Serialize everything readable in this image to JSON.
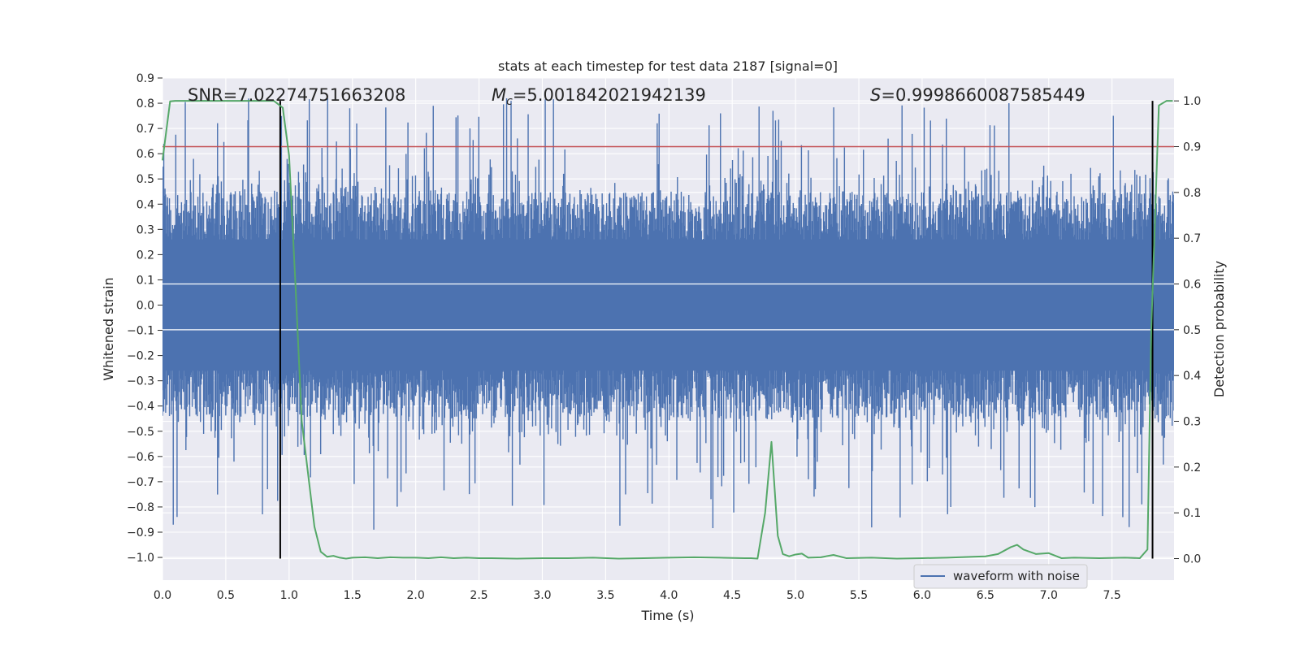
{
  "chart_data": {
    "type": "line",
    "title": "stats at each timestep for test data 2187 [signal=0]",
    "xlabel": "Time (s)",
    "ylabel": "Whitened strain",
    "y2label": "Detection probability",
    "xlim": [
      0,
      7.99
    ],
    "ylim": [
      -1.09,
      0.9
    ],
    "y2lim": [
      -0.047,
      1.05
    ],
    "x_ticks": [
      "0.0",
      "0.5",
      "1.0",
      "1.5",
      "2.0",
      "2.5",
      "3.0",
      "3.5",
      "4.0",
      "4.5",
      "5.0",
      "5.5",
      "6.0",
      "6.5",
      "7.0",
      "7.5"
    ],
    "x_tick_values": [
      0,
      0.5,
      1.0,
      1.5,
      2.0,
      2.5,
      3.0,
      3.5,
      4.0,
      4.5,
      5.0,
      5.5,
      6.0,
      6.5,
      7.0,
      7.5
    ],
    "y_ticks": [
      "0.9",
      "0.8",
      "0.7",
      "0.6",
      "0.5",
      "0.4",
      "0.3",
      "0.2",
      "0.1",
      "0.0",
      "−0.1",
      "−0.2",
      "−0.3",
      "−0.4",
      "−0.5",
      "−0.6",
      "−0.7",
      "−0.8",
      "−0.9",
      "−1.0"
    ],
    "y_tick_values": [
      0.9,
      0.8,
      0.7,
      0.6,
      0.5,
      0.4,
      0.3,
      0.2,
      0.1,
      0.0,
      -0.1,
      -0.2,
      -0.3,
      -0.4,
      -0.5,
      -0.6,
      -0.7,
      -0.8,
      -0.9,
      -1.0
    ],
    "y2_ticks": [
      "1.0",
      "0.9",
      "0.8",
      "0.7",
      "0.6",
      "0.5",
      "0.4",
      "0.3",
      "0.2",
      "0.1",
      "0.0"
    ],
    "y2_tick_values": [
      1.0,
      0.9,
      0.8,
      0.7,
      0.6,
      0.5,
      0.4,
      0.3,
      0.2,
      0.1,
      0.0
    ],
    "series": [
      {
        "name": "waveform with noise",
        "axis": "left",
        "color": "#4c72b0",
        "description": "dense whitened-strain noise series, core band about ±0.45 with spikes to about ±0.8",
        "envelope": {
          "core_low": -0.45,
          "core_high": 0.45,
          "max": 0.82,
          "min": -0.9
        }
      },
      {
        "name": "detection probability",
        "axis": "right",
        "color": "#55a868",
        "x": [
          0.0,
          0.06,
          0.1,
          0.2,
          0.3,
          0.4,
          0.5,
          0.6,
          0.7,
          0.8,
          0.88,
          0.95,
          1.0,
          1.05,
          1.1,
          1.2,
          1.25,
          1.3,
          1.35,
          1.4,
          1.45,
          1.5,
          1.6,
          1.7,
          1.8,
          1.9,
          2.0,
          2.1,
          2.2,
          2.3,
          2.4,
          2.5,
          2.6,
          2.8,
          3.0,
          3.2,
          3.4,
          3.6,
          3.8,
          4.0,
          4.2,
          4.4,
          4.6,
          4.65,
          4.7,
          4.76,
          4.81,
          4.86,
          4.9,
          4.95,
          5.0,
          5.05,
          5.1,
          5.2,
          5.3,
          5.4,
          5.6,
          5.8,
          6.0,
          6.2,
          6.4,
          6.5,
          6.6,
          6.7,
          6.75,
          6.8,
          6.9,
          7.0,
          7.1,
          7.2,
          7.4,
          7.6,
          7.72,
          7.78,
          7.81,
          7.87,
          7.93,
          7.98
        ],
        "y": [
          0.87,
          0.999,
          1.0,
          1.0,
          1.0,
          1.0,
          1.0,
          1.0,
          1.0,
          1.0,
          1.0,
          0.985,
          0.88,
          0.6,
          0.3,
          0.07,
          0.015,
          0.004,
          0.006,
          0.002,
          0.0,
          0.002,
          0.003,
          0.001,
          0.003,
          0.002,
          0.002,
          0.001,
          0.003,
          0.001,
          0.002,
          0.001,
          0.001,
          0.0,
          0.001,
          0.001,
          0.002,
          0.0,
          0.001,
          0.002,
          0.003,
          0.002,
          0.001,
          0.001,
          0.0,
          0.1,
          0.255,
          0.05,
          0.01,
          0.005,
          0.009,
          0.011,
          0.002,
          0.003,
          0.008,
          0.001,
          0.002,
          0.0,
          0.001,
          0.002,
          0.004,
          0.005,
          0.01,
          0.025,
          0.03,
          0.02,
          0.01,
          0.012,
          0.001,
          0.002,
          0.001,
          0.002,
          0.001,
          0.02,
          0.5,
          0.99,
          1.0,
          1.0
        ]
      }
    ],
    "threshold": {
      "value": 0.9,
      "axis": "right",
      "color": "#c44e52"
    },
    "vlines": [
      0.93,
      7.82
    ],
    "annotations": [
      {
        "text": "SNR=7.02274751663208"
      },
      {
        "text_parts": [
          "M",
          "c",
          "=5.001842021942139"
        ]
      },
      {
        "text_parts": [
          "S",
          "=0.9998660087585449"
        ]
      }
    ],
    "legend": {
      "label": "waveform with noise",
      "placement": "lower-right"
    },
    "colors": {
      "background": "#eaeaf2",
      "grid": "#ffffff",
      "strain": "#4c72b0",
      "prob": "#55a868",
      "threshold": "#c44e52",
      "vline": "#000000"
    }
  }
}
